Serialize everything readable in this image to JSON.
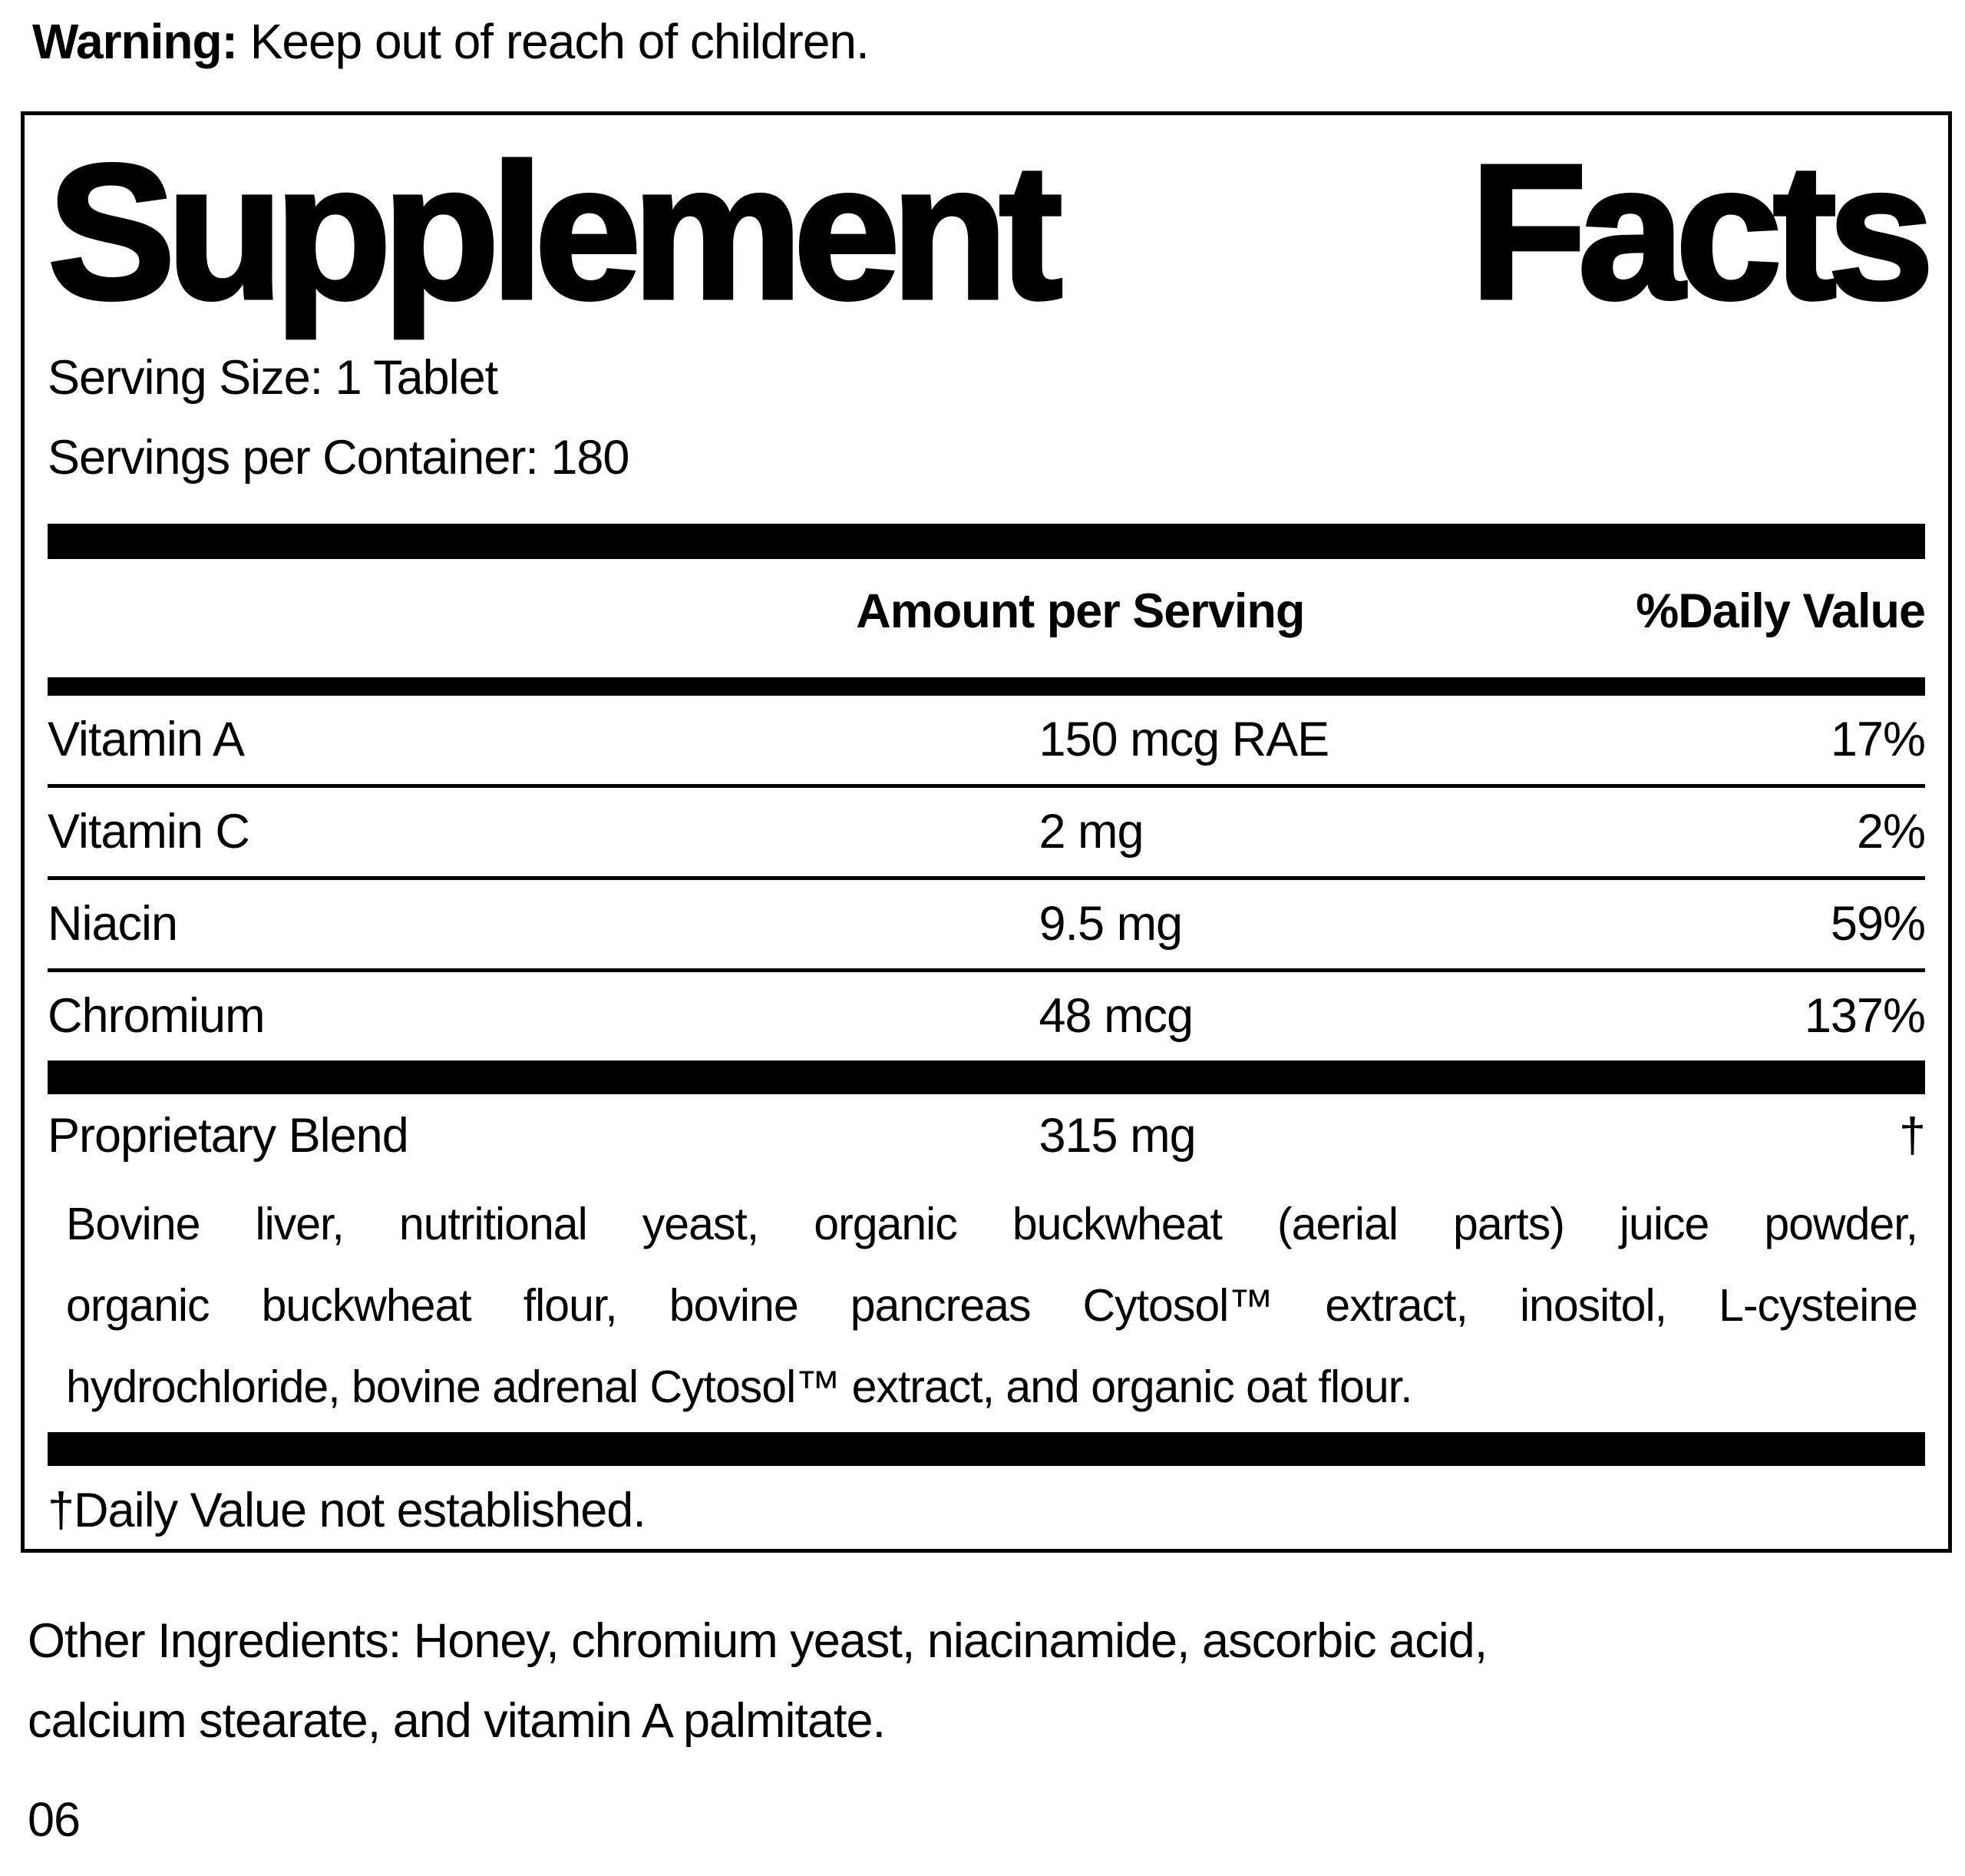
{
  "warning": {
    "label": "Warning:",
    "text": " Keep out of reach of children."
  },
  "panel": {
    "title_words": [
      "Supplement",
      "Facts"
    ],
    "serving_size": "Serving Size: 1 Tablet",
    "servings_per_container": "Servings per Container: 180",
    "header": {
      "amount": "Amount per Serving",
      "daily_value": "%Daily Value"
    },
    "nutrients": [
      {
        "name": "Vitamin A",
        "amount": "150 mcg RAE",
        "dv": "17%"
      },
      {
        "name": "Vitamin C",
        "amount": "2 mg",
        "dv": "2%"
      },
      {
        "name": "Niacin",
        "amount": "9.5 mg",
        "dv": "59%"
      },
      {
        "name": "Chromium",
        "amount": "48 mcg",
        "dv": "137%"
      }
    ],
    "blend": {
      "name": "Proprietary Blend",
      "amount": "315 mg",
      "dv": "†",
      "description_lines": [
        "Bovine liver, nutritional yeast, organic buckwheat (aerial parts) juice powder,",
        "organic buckwheat flour, bovine pancreas Cytosol™ extract, inositol, L-cysteine",
        "hydrochloride, bovine adrenal Cytosol™ extract, and organic oat flour."
      ]
    },
    "footnote": "†Daily Value not established."
  },
  "other_ingredients": {
    "lines": [
      "Other Ingredients: Honey, chromium yeast, niacinamide, ascorbic acid,",
      "calcium stearate, and vitamin A palmitate."
    ]
  },
  "footer_code": "06"
}
